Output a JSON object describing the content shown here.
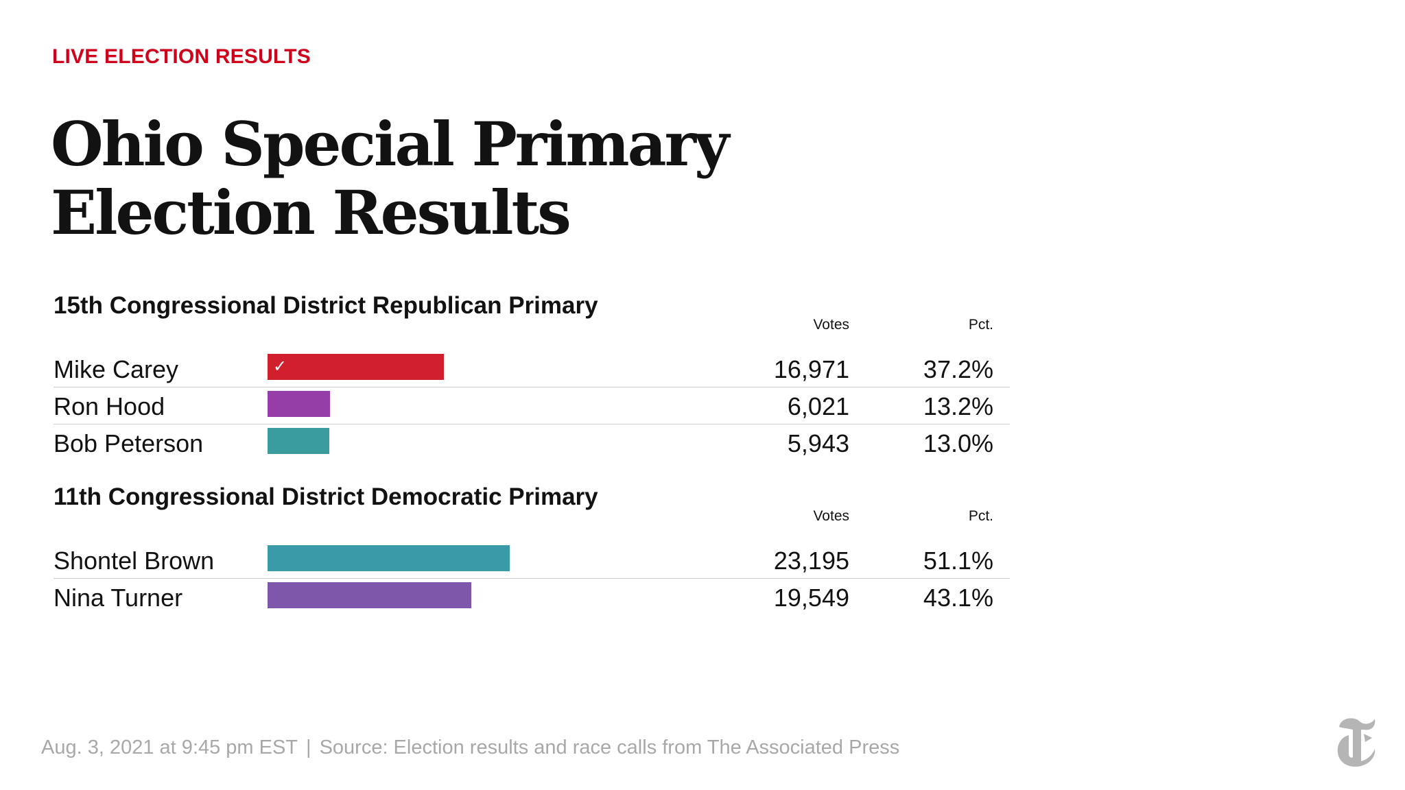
{
  "kicker": "LIVE ELECTION RESULTS",
  "headline": {
    "line1": "Ohio Special Primary",
    "line2": "Election Results"
  },
  "colors": {
    "kicker": "#d0021b",
    "winner_bar": "#d0202e"
  },
  "chart_data": [
    {
      "type": "bar",
      "title": "15th Congressional District Republican Primary",
      "columns": {
        "votes": "Votes",
        "pct": "Pct."
      },
      "categories": [
        "Mike Carey",
        "Ron Hood",
        "Bob Peterson"
      ],
      "values": [
        37.2,
        13.2,
        13.0
      ],
      "rows": [
        {
          "name": "Mike Carey",
          "votes": "16,971",
          "pct": "37.2%",
          "pct_value": 37.2,
          "color": "#d0202e",
          "winner": true,
          "check_icon": "checkmark-icon"
        },
        {
          "name": "Ron Hood",
          "votes": "6,021",
          "pct": "13.2%",
          "pct_value": 13.2,
          "color": "#953ea8",
          "winner": false
        },
        {
          "name": "Bob Peterson",
          "votes": "5,943",
          "pct": "13.0%",
          "pct_value": 13.0,
          "color": "#3a9c9c",
          "winner": false
        }
      ]
    },
    {
      "type": "bar",
      "title": "11th Congressional District Democratic Primary",
      "columns": {
        "votes": "Votes",
        "pct": "Pct."
      },
      "categories": [
        "Shontel Brown",
        "Nina Turner"
      ],
      "values": [
        51.1,
        43.1
      ],
      "rows": [
        {
          "name": "Shontel Brown",
          "votes": "23,195",
          "pct": "51.1%",
          "pct_value": 51.1,
          "color": "#3a9aa8",
          "winner": false
        },
        {
          "name": "Nina Turner",
          "votes": "19,549",
          "pct": "43.1%",
          "pct_value": 43.1,
          "color": "#7f57aa",
          "winner": false
        }
      ]
    }
  ],
  "footer": {
    "timestamp": "Aug. 3, 2021 at 9:45 pm EST",
    "separator": "|",
    "source": "Source: Election results and race calls from The Associated Press"
  },
  "logo_icon": "nyt-t-logo-icon"
}
